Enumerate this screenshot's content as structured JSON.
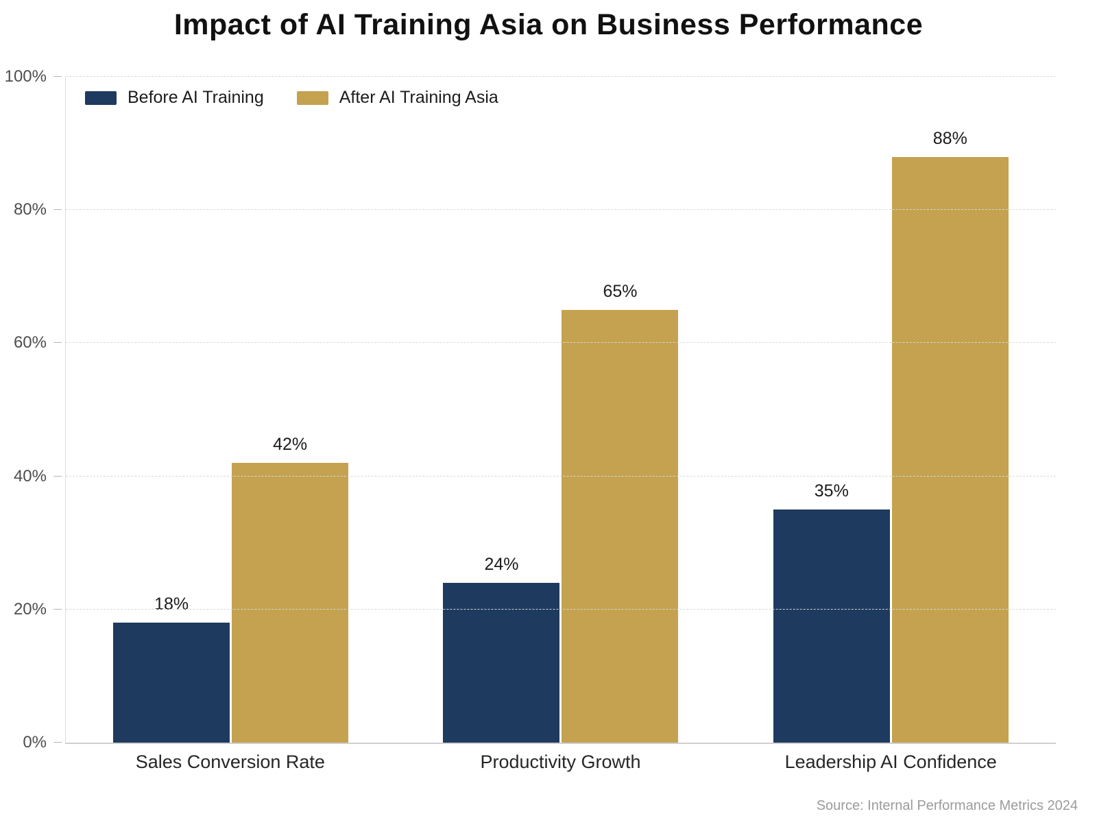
{
  "chart_data": {
    "type": "bar",
    "title": "Impact of AI Training Asia on Business Performance",
    "categories": [
      "Sales Conversion Rate",
      "Productivity Growth",
      "Leadership AI Confidence"
    ],
    "series": [
      {
        "name": "Before AI Training",
        "color": "#1e3a5f",
        "values": [
          18,
          24,
          35
        ]
      },
      {
        "name": "After AI Training Asia",
        "color": "#c4a24f",
        "values": [
          42,
          65,
          88
        ]
      }
    ],
    "value_suffix": "%",
    "ylim": [
      0,
      100
    ],
    "yticks": [
      0,
      20,
      40,
      60,
      80,
      100
    ],
    "ytick_labels": [
      "0%",
      "20%",
      "40%",
      "60%",
      "80%",
      "100%"
    ],
    "grid": "dashed-horizontal",
    "legend_position": "top-left",
    "source": "Source: Internal Performance Metrics 2024"
  }
}
